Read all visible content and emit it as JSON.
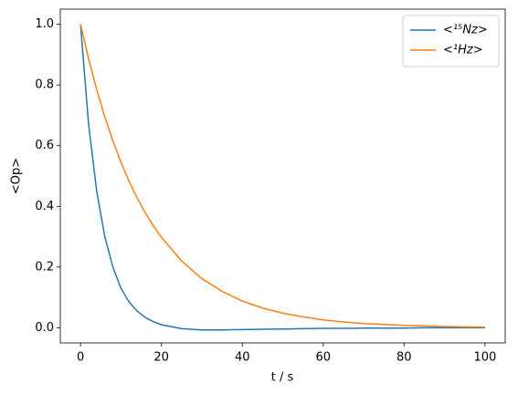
{
  "chart_data": {
    "type": "line",
    "xlabel": "t / s",
    "ylabel": "<Op>",
    "x": [
      0,
      2,
      4,
      6,
      8,
      10,
      12,
      14,
      16,
      18,
      20,
      25,
      30,
      35,
      40,
      45,
      50,
      55,
      60,
      65,
      70,
      75,
      80,
      85,
      90,
      95,
      100
    ],
    "series": [
      {
        "name": "<¹⁵Nz>",
        "color": "#1f77b4",
        "values": [
          1.0,
          0.67,
          0.45,
          0.3,
          0.2,
          0.13,
          0.085,
          0.055,
          0.034,
          0.02,
          0.01,
          -0.003,
          -0.007,
          -0.007,
          -0.006,
          -0.005,
          -0.004,
          -0.003,
          -0.002,
          -0.002,
          -0.001,
          -0.001,
          -0.001,
          0,
          0,
          0,
          0
        ]
      },
      {
        "name": "<¹Hz>",
        "color": "#ff7f0e",
        "values": [
          1.0,
          0.886,
          0.785,
          0.695,
          0.616,
          0.545,
          0.483,
          0.428,
          0.379,
          0.336,
          0.298,
          0.22,
          0.162,
          0.12,
          0.088,
          0.065,
          0.048,
          0.036,
          0.026,
          0.019,
          0.014,
          0.011,
          0.008,
          0.006,
          0.004,
          0.003,
          0.002
        ]
      }
    ],
    "xlim": [
      -5,
      105
    ],
    "ylim": [
      -0.05,
      1.05
    ],
    "xticks": [
      0,
      20,
      40,
      60,
      80,
      100
    ],
    "yticks": [
      {
        "value": 0,
        "label": "0.0"
      },
      0.2,
      0.4,
      0.6,
      0.8,
      {
        "value": 1,
        "label": "1.0"
      }
    ],
    "grid": false,
    "legend": "upper right"
  }
}
